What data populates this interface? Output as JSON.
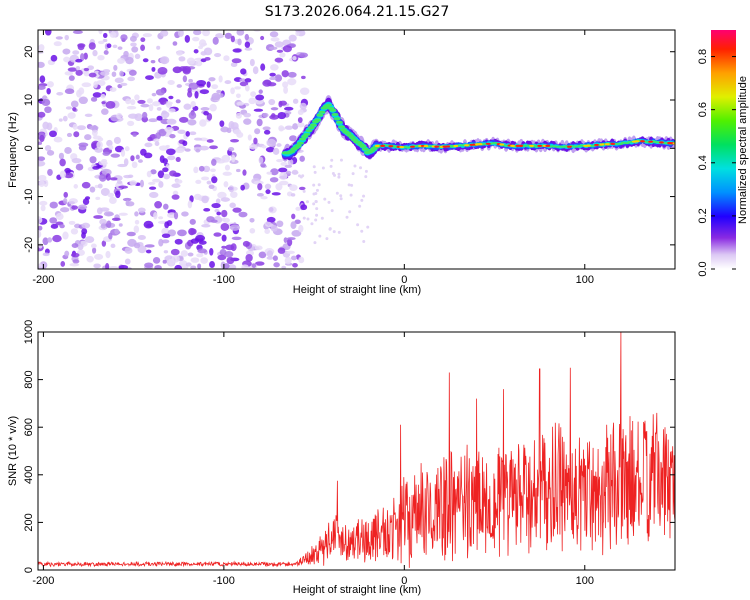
{
  "title": "S173.2026.064.21.15.G27",
  "chart_data": [
    {
      "type": "heatmap",
      "name": "spectrogram",
      "xlabel": "Height of straight line (km)",
      "ylabel": "Frequency (Hz)",
      "xlim": [
        -203,
        150
      ],
      "ylim": [
        -25,
        24.5
      ],
      "xticks": [
        -200,
        -100,
        0,
        100
      ],
      "yticks": [
        20,
        10,
        0,
        -10,
        -20
      ],
      "colorbar": {
        "label": "Normalized spectral amplitude",
        "range": [
          0.0,
          0.9
        ],
        "ticks": [
          0.0,
          0.2,
          0.4,
          0.6,
          0.8
        ]
      },
      "noise_region_x": [
        -203,
        -55
      ],
      "signal_track": {
        "description": "Doppler frequency of main signal vs height",
        "x": [
          -63,
          -58,
          -52,
          -48,
          -45,
          -42,
          -40,
          -37,
          -34,
          -31,
          -28,
          -25,
          -22,
          -20,
          -15,
          -10,
          0,
          10,
          20,
          30,
          40,
          50,
          60,
          70,
          80,
          90,
          100,
          110,
          120,
          130,
          140,
          150
        ],
        "freq": [
          -1,
          1,
          4,
          6,
          8,
          9,
          8,
          6,
          4,
          3,
          2,
          1,
          0,
          -1,
          0.5,
          0.5,
          0.2,
          0.5,
          0.3,
          0.5,
          0.8,
          1,
          0.5,
          0.5,
          0.5,
          0.3,
          0.5,
          0.8,
          1,
          1.5,
          1.3,
          1.0
        ]
      }
    },
    {
      "type": "line",
      "name": "snr",
      "xlabel": "Height of straight line (km)",
      "ylabel": "SNR (10 * v/v)",
      "xlim": [
        -203,
        150
      ],
      "ylim": [
        0,
        1000
      ],
      "xticks": [
        -200,
        -100,
        0,
        100
      ],
      "yticks": [
        0,
        200,
        400,
        600,
        800,
        1000
      ],
      "color": "#ee2222",
      "envelope": {
        "x": [
          -203,
          -60,
          -45,
          -40,
          -30,
          -20,
          -10,
          0,
          20,
          40,
          60,
          80,
          100,
          120,
          140,
          150
        ],
        "mean": [
          25,
          25,
          90,
          150,
          120,
          130,
          160,
          200,
          260,
          290,
          300,
          330,
          340,
          360,
          380,
          380
        ],
        "amp": [
          10,
          10,
          80,
          120,
          90,
          120,
          160,
          200,
          260,
          280,
          280,
          300,
          310,
          320,
          300,
          280
        ]
      },
      "peaks": [
        {
          "x": -37,
          "y": 375
        },
        {
          "x": -2,
          "y": 610
        },
        {
          "x": 25,
          "y": 830
        },
        {
          "x": 40,
          "y": 720
        },
        {
          "x": 55,
          "y": 760
        },
        {
          "x": 75,
          "y": 845
        },
        {
          "x": 92,
          "y": 850
        },
        {
          "x": 120,
          "y": 1000
        },
        {
          "x": 140,
          "y": 660
        }
      ]
    }
  ]
}
